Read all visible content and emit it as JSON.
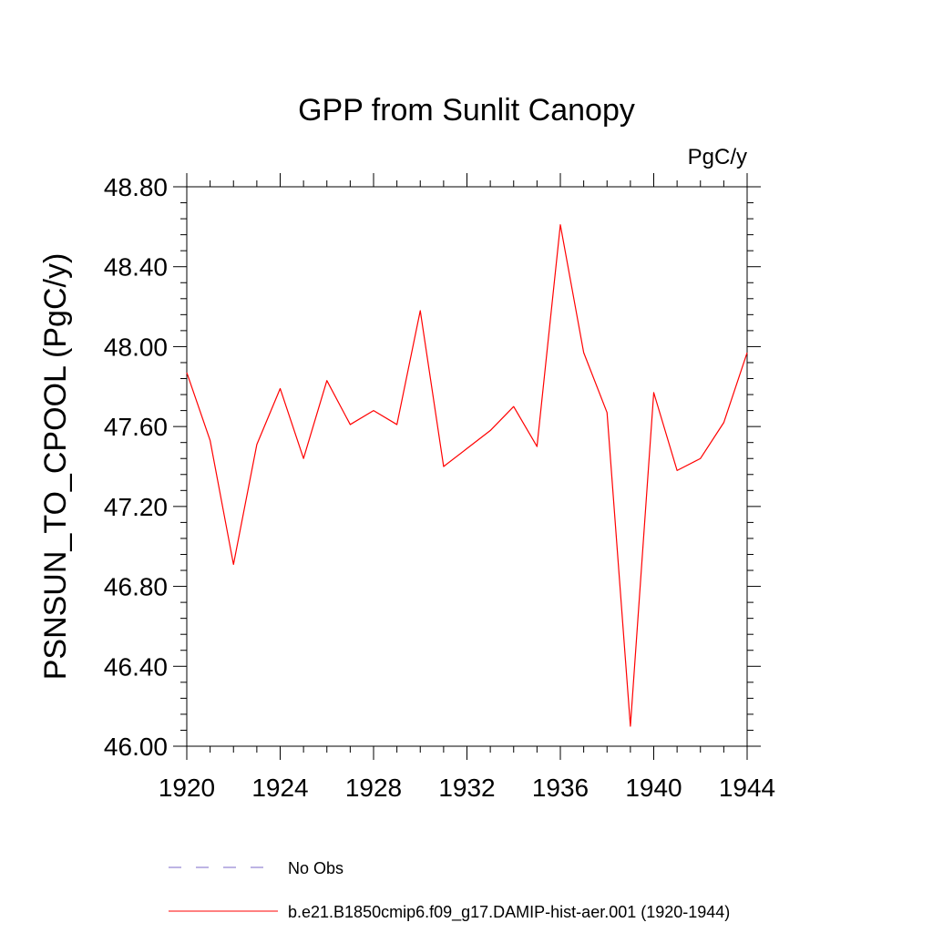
{
  "chart_data": {
    "type": "line",
    "title": "GPP from Sunlit Canopy",
    "units": "PgC/y",
    "ylabel": "PSNSUN_TO_CPOOL  (PgC/y)",
    "xlabel": "",
    "xlim": [
      1920,
      1944
    ],
    "ylim": [
      46.0,
      48.8
    ],
    "x_ticks": [
      "1920",
      "1924",
      "1928",
      "1932",
      "1936",
      "1940",
      "1944"
    ],
    "y_ticks": [
      "46.00",
      "46.40",
      "46.80",
      "47.20",
      "47.60",
      "48.00",
      "48.40",
      "48.80"
    ],
    "grid": false,
    "legend_position": "bottom",
    "series": [
      {
        "name": "No Obs",
        "color": "#7b68c8",
        "dashed": true,
        "x": [],
        "y": []
      },
      {
        "name": "b.e21.B1850cmip6.f09_g17.DAMIP-hist-aer.001 (1920-1944)",
        "color": "#ff0000",
        "dashed": false,
        "x": [
          1920,
          1921,
          1922,
          1923,
          1924,
          1925,
          1926,
          1927,
          1928,
          1929,
          1930,
          1931,
          1932,
          1933,
          1934,
          1935,
          1936,
          1937,
          1938,
          1939,
          1940,
          1941,
          1942,
          1943,
          1944
        ],
        "y": [
          47.87,
          47.53,
          46.91,
          47.51,
          47.79,
          47.44,
          47.83,
          47.61,
          47.68,
          47.61,
          48.18,
          47.4,
          47.49,
          47.58,
          47.7,
          47.5,
          48.61,
          47.97,
          47.67,
          46.1,
          47.77,
          47.38,
          47.44,
          47.62,
          47.97
        ]
      }
    ]
  }
}
